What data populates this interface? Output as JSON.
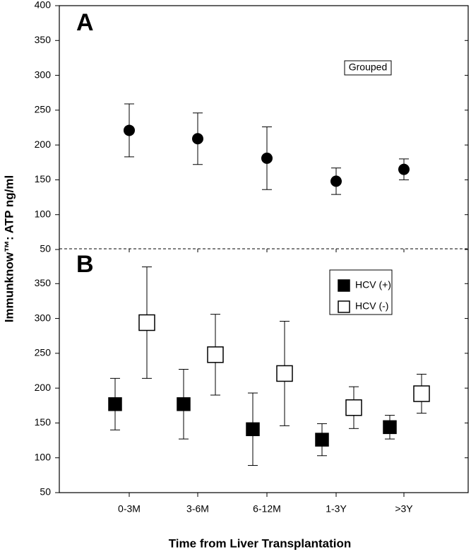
{
  "chart_data": [
    {
      "type": "errorbar",
      "annotation": "A",
      "subtitle": "Grouped",
      "ylabel": "Immunknow™: ATP ng/ml",
      "categories": [
        "0-3M",
        "3-6M",
        "6-12M",
        "1-3Y",
        ">3Y"
      ],
      "series": [
        {
          "color": "#000000",
          "values": [
            221,
            209,
            181,
            148,
            165
          ],
          "errors": [
            38,
            37,
            45,
            19,
            15
          ]
        }
      ],
      "ylim": [
        50,
        400
      ],
      "yticks": [
        50,
        100,
        150,
        200,
        250,
        300,
        350,
        400
      ]
    },
    {
      "type": "errorbar",
      "annotation": "B",
      "xlabel": "Time from Liver Transplantation",
      "categories": [
        "0-3M",
        "3-6M",
        "6-12M",
        "1-3Y",
        ">3Y"
      ],
      "series": [
        {
          "name": "HCV (+)",
          "color": "#000000",
          "values": [
            177,
            177,
            141,
            126,
            144
          ],
          "errors": [
            37,
            50,
            52,
            23,
            17
          ]
        },
        {
          "name": "HCV (-)",
          "color": "#ffffff",
          "values": [
            294,
            248,
            221,
            172,
            192
          ],
          "errors": [
            80,
            58,
            75,
            30,
            28
          ]
        }
      ],
      "ylim": [
        50,
        400
      ],
      "yticks": [
        50,
        100,
        150,
        200,
        250,
        300,
        350
      ]
    }
  ]
}
